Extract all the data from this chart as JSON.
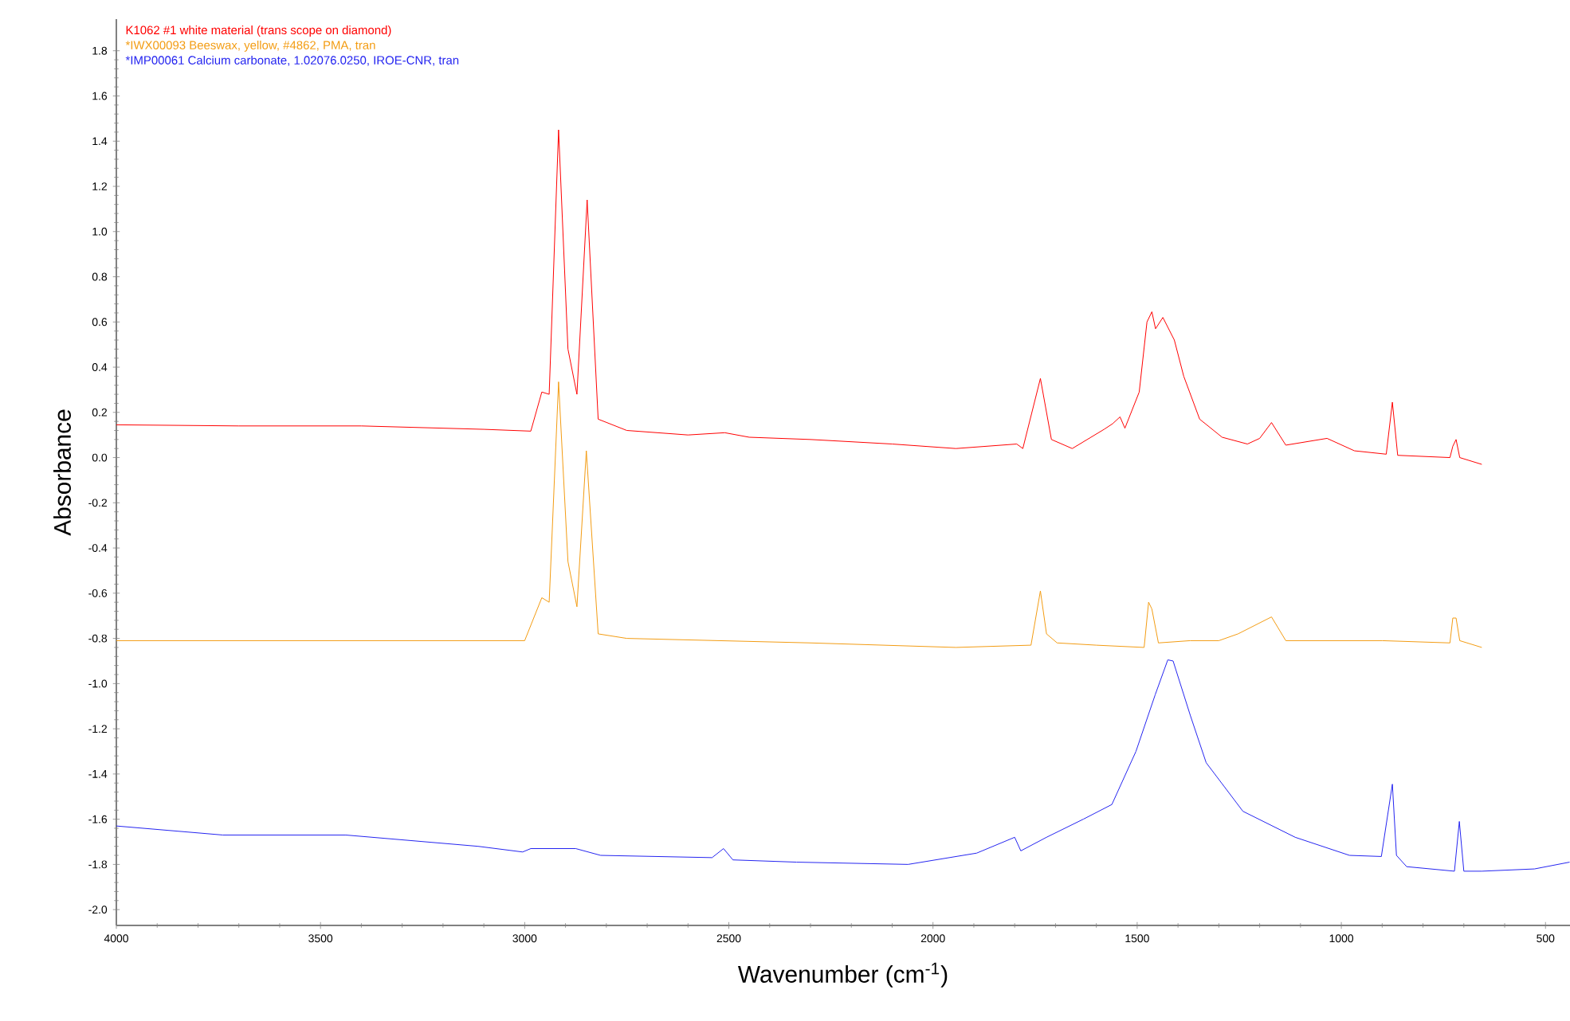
{
  "chart_data": {
    "type": "line",
    "xlabel": "Wavenumber (cm$^{-1}$)",
    "ylabel": "Absorbance",
    "xlim": [
      4000,
      440
    ],
    "ylim": [
      -2.07,
      1.94
    ],
    "xticks": [
      4000,
      3500,
      3000,
      2500,
      2000,
      1500,
      1000,
      500
    ],
    "yticks": [
      {
        "value": -2.0,
        "label": "-2.0"
      },
      -1.8,
      -1.6,
      -1.4,
      -1.2,
      {
        "value": -1.0,
        "label": "-1.0"
      },
      -0.8,
      -0.6,
      -0.4,
      -0.2,
      {
        "value": 0,
        "label": "0.0"
      },
      0.2,
      0.4,
      0.6,
      0.8,
      {
        "value": 1.0,
        "label": "1.0"
      },
      1.2,
      1.4,
      1.6,
      1.8
    ],
    "grid": false,
    "legend": "top left",
    "marker": "none",
    "line_style": "solid",
    "series": [
      {
        "name": "K1062 #1 white material (trans scope on diamond)",
        "color": "#ff0000",
        "x": [
          4000,
          3700,
          3400,
          3100,
          2985,
          2958,
          2940,
          2917,
          2894,
          2872,
          2847,
          2820,
          2750,
          2600,
          2510,
          2450,
          2300,
          2100,
          1944,
          1795,
          1780,
          1737,
          1710,
          1659,
          1581,
          1560,
          1542,
          1530,
          1495,
          1476,
          1464,
          1455,
          1437,
          1409,
          1386,
          1347,
          1292,
          1230,
          1200,
          1171,
          1136,
          1035,
          968,
          890,
          875,
          862,
          734,
          727,
          719,
          710,
          656
        ],
        "values": [
          0.145,
          0.14,
          0.14,
          0.125,
          0.117,
          0.29,
          0.28,
          1.45,
          0.48,
          0.28,
          1.14,
          0.17,
          0.12,
          0.1,
          0.11,
          0.09,
          0.08,
          0.06,
          0.04,
          0.06,
          0.04,
          0.35,
          0.08,
          0.04,
          0.125,
          0.15,
          0.18,
          0.13,
          0.29,
          0.6,
          0.645,
          0.57,
          0.62,
          0.52,
          0.36,
          0.17,
          0.09,
          0.06,
          0.085,
          0.155,
          0.055,
          0.085,
          0.03,
          0.015,
          0.245,
          0.01,
          0.0,
          0.05,
          0.08,
          0.0,
          -0.03
        ]
      },
      {
        "name": "*IWX00093 Beeswax, yellow, #4862, PMA, tran",
        "color": "#f39c12",
        "x": [
          4000,
          3000,
          2958,
          2940,
          2917,
          2894,
          2872,
          2849,
          2820,
          2750,
          2300,
          1944,
          1760,
          1737,
          1722,
          1696,
          1600,
          1483,
          1472,
          1464,
          1448,
          1370,
          1300,
          1253,
          1171,
          1136,
          900,
          734,
          727,
          719,
          710,
          656
        ],
        "values": [
          -0.81,
          -0.81,
          -0.62,
          -0.64,
          0.335,
          -0.46,
          -0.66,
          0.03,
          -0.78,
          -0.8,
          -0.82,
          -0.84,
          -0.83,
          -0.59,
          -0.78,
          -0.82,
          -0.83,
          -0.84,
          -0.64,
          -0.67,
          -0.82,
          -0.81,
          -0.81,
          -0.78,
          -0.705,
          -0.81,
          -0.81,
          -0.82,
          -0.71,
          -0.71,
          -0.81,
          -0.84
        ]
      },
      {
        "name": "*IMP00061 Calcium carbonate, 1.02076.0250, IROE-CNR, tran",
        "color": "#2424f0",
        "x": [
          4000,
          3739,
          3438,
          3114,
          3005,
          2985,
          2875,
          2814,
          2541,
          2513,
          2490,
          2334,
          2061,
          1893,
          1800,
          1785,
          1722,
          1632,
          1562,
          1503,
          1456,
          1425,
          1412,
          1370,
          1331,
          1241,
          1113,
          980,
          902,
          875,
          865,
          840,
          723,
          711,
          700,
          656,
          527,
          441
        ],
        "values": [
          -1.63,
          -1.67,
          -1.67,
          -1.72,
          -1.745,
          -1.73,
          -1.73,
          -1.76,
          -1.77,
          -1.73,
          -1.78,
          -1.79,
          -1.8,
          -1.75,
          -1.68,
          -1.74,
          -1.68,
          -1.6,
          -1.535,
          -1.3,
          -1.05,
          -0.895,
          -0.9,
          -1.14,
          -1.35,
          -1.565,
          -1.68,
          -1.76,
          -1.765,
          -1.445,
          -1.76,
          -1.81,
          -1.83,
          -1.61,
          -1.83,
          -1.83,
          -1.82,
          -1.79
        ]
      }
    ]
  }
}
